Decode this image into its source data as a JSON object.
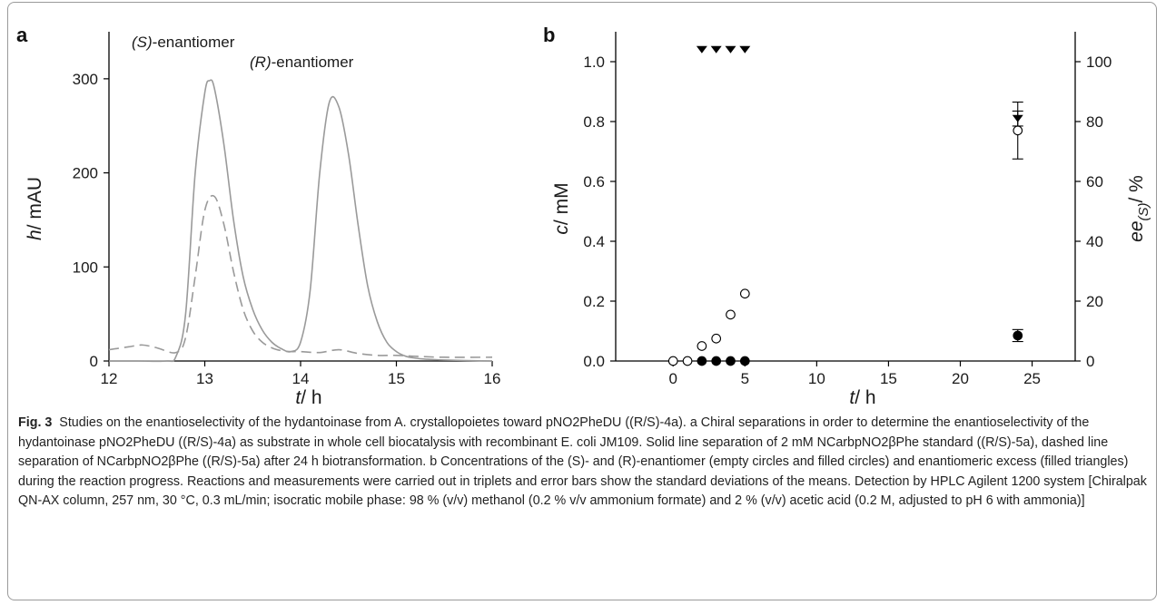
{
  "caption": {
    "label": "Fig. 3",
    "text": "Studies on the enantioselectivity of the hydantoinase from A. crystallopoietes toward pNO2PheDU ((R/S)-4a). a Chiral separations in order to determine the enantioselectivity of the hydantoinase pNO2PheDU ((R/S)-4a) as substrate in whole cell biocatalysis with recombinant E. coli JM109. Solid line separation of 2 mM NCarbpNO2βPhe standard ((R/S)-5a), dashed line separation of NCarbpNO2βPhe ((R/S)-5a) after 24 h biotransformation. b Concentrations of the (S)- and (R)-enantiomer (empty circles and filled circles) and enantiomeric excess (filled triangles) during the reaction progress. Reactions and measurements were carried out in triplets and error bars show the standard deviations of the means. Detection by HPLC Agilent 1200 system [Chiralpak QN-AX column, 257 nm, 30 °C, 0.3 mL/min; isocratic mobile phase: 98 % (v/v) methanol (0.2 % v/v ammonium formate) and 2 % (v/v) acetic acid (0.2 M, adjusted to pH 6 with ammonia)]"
  },
  "chart_data": [
    {
      "panel": "a",
      "type": "line",
      "xlabel": "t/ h",
      "ylabel": "h/ mAU",
      "xlim": [
        12,
        16
      ],
      "ylim": [
        0,
        350
      ],
      "xticks": [
        12,
        13,
        14,
        15,
        16
      ],
      "yticks": [
        0,
        100,
        200,
        300
      ],
      "annotations": [
        {
          "text": "(S)-enantiomer",
          "x": 13.05,
          "y": 305
        },
        {
          "text": "(R)-enantiomer",
          "x": 14.5,
          "y": 283
        }
      ],
      "series": [
        {
          "style": "solid",
          "color": "#9a9a9a",
          "x": [
            12.0,
            12.3,
            12.6,
            12.7,
            12.8,
            12.9,
            13.0,
            13.05,
            13.1,
            13.2,
            13.3,
            13.4,
            13.5,
            13.6,
            13.7,
            13.8,
            13.9,
            14.0,
            14.1,
            14.2,
            14.3,
            14.4,
            14.5,
            14.6,
            14.7,
            14.8,
            14.9,
            15.0,
            15.1,
            15.2,
            15.3,
            15.5,
            16.0
          ],
          "y": [
            0,
            0,
            0,
            5,
            50,
            200,
            285,
            298,
            290,
            230,
            150,
            90,
            55,
            33,
            20,
            13,
            10,
            20,
            75,
            200,
            275,
            270,
            220,
            145,
            80,
            42,
            20,
            10,
            5,
            3,
            2,
            1,
            0
          ]
        },
        {
          "style": "dashed",
          "color": "#9a9a9a",
          "x": [
            12.0,
            12.2,
            12.35,
            12.5,
            12.7,
            12.8,
            12.9,
            13.0,
            13.1,
            13.2,
            13.3,
            13.4,
            13.5,
            13.6,
            13.7,
            13.8,
            13.9,
            14.0,
            14.2,
            14.4,
            14.6,
            14.8,
            15.0,
            15.2,
            15.5,
            16.0
          ],
          "y": [
            12,
            15,
            17,
            14,
            9,
            25,
            90,
            160,
            175,
            145,
            95,
            55,
            32,
            20,
            14,
            11,
            10,
            10,
            9,
            12,
            8,
            6,
            6,
            5,
            4,
            4
          ]
        }
      ]
    },
    {
      "panel": "b",
      "type": "scatter",
      "xlabel": "t/ h",
      "ylabel": "c/ mM",
      "y2label": "ee(S)/ %",
      "xlim": [
        -4,
        28
      ],
      "ylim": [
        0,
        1.1
      ],
      "y2lim": [
        0,
        110
      ],
      "xticks": [
        0,
        5,
        10,
        15,
        20,
        25
      ],
      "yticks": [
        0.0,
        0.2,
        0.4,
        0.6,
        0.8,
        1.0
      ],
      "y2ticks": [
        0,
        20,
        40,
        60,
        80,
        100
      ],
      "series": [
        {
          "marker": "empty-circle",
          "axis": "left",
          "x": [
            0,
            1,
            2,
            3,
            4,
            5,
            24
          ],
          "y": [
            0.0,
            0.0,
            0.05,
            0.075,
            0.155,
            0.225,
            0.77
          ],
          "yerr": [
            0,
            0,
            0,
            0,
            0,
            0,
            0.095
          ]
        },
        {
          "marker": "filled-circle",
          "axis": "left",
          "x": [
            2,
            3,
            4,
            5,
            24
          ],
          "y": [
            0.0,
            0.0,
            0.0,
            0.0,
            0.085
          ],
          "yerr": [
            0,
            0,
            0,
            0,
            0.02
          ]
        },
        {
          "marker": "filled-triangle",
          "axis": "right",
          "x": [
            2,
            3,
            4,
            5,
            24
          ],
          "y": [
            104,
            104,
            104,
            104,
            81
          ],
          "yerr": [
            0,
            0,
            0,
            0,
            2.5
          ]
        }
      ]
    }
  ]
}
